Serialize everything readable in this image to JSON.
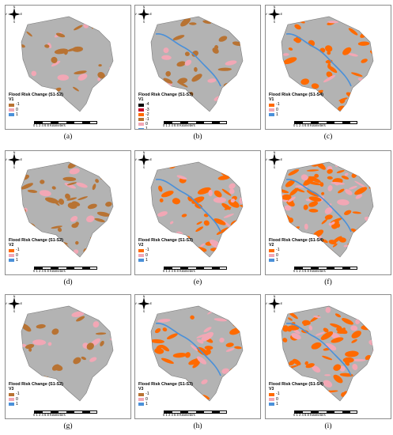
{
  "colors": {
    "minus1": "#b87333",
    "zero": "#f2a7b5",
    "plus1": "#4a90d9",
    "minus2": "#ff6a00",
    "minus3": "#c8102e",
    "minus4": "#000000",
    "base": "#b3b3b3"
  },
  "panels": [
    {
      "caption": "(a)",
      "legend_title": "Flood Risk Change (S1-S2)",
      "legend_sub": "V1",
      "items": [
        {
          "label": "-1",
          "color": "#b87333"
        },
        {
          "label": "0",
          "color": "#f2a7b5"
        },
        {
          "label": "1",
          "color": "#4a90d9"
        }
      ]
    },
    {
      "caption": "(b)",
      "legend_title": "Flood Risk Change (S1-S3)",
      "legend_sub": "V1",
      "items": [
        {
          "label": "-4",
          "color": "#000000"
        },
        {
          "label": "-3",
          "color": "#c8102e"
        },
        {
          "label": "-2",
          "color": "#ff6a00"
        },
        {
          "label": "-1",
          "color": "#b87333"
        },
        {
          "label": "0",
          "color": "#f2a7b5"
        },
        {
          "label": "1",
          "color": "#4a90d9"
        }
      ]
    },
    {
      "caption": "(c)",
      "legend_title": "Flood Risk Change (S1-S4)",
      "legend_sub": "V1",
      "items": [
        {
          "label": "-1",
          "color": "#ff6a00"
        },
        {
          "label": "0",
          "color": "#f2a7b5"
        },
        {
          "label": "1",
          "color": "#4a90d9"
        }
      ]
    },
    {
      "caption": "(d)",
      "legend_title": "Flood Risk Change (S1-S2)",
      "legend_sub": "V2",
      "items": [
        {
          "label": "-1",
          "color": "#ff6a00"
        },
        {
          "label": "0",
          "color": "#f2a7b5"
        },
        {
          "label": "1",
          "color": "#4a90d9"
        }
      ]
    },
    {
      "caption": "(e)",
      "legend_title": "Flood Risk Change (S1-S3)",
      "legend_sub": "V2",
      "items": [
        {
          "label": "-1",
          "color": "#ff6a00"
        },
        {
          "label": "0",
          "color": "#f2a7b5"
        },
        {
          "label": "1",
          "color": "#4a90d9"
        }
      ]
    },
    {
      "caption": "(f)",
      "legend_title": "Flood Risk Change (S1-S4)",
      "legend_sub": "V2",
      "items": [
        {
          "label": "-1",
          "color": "#ff6a00"
        },
        {
          "label": "0",
          "color": "#f2a7b5"
        },
        {
          "label": "1",
          "color": "#4a90d9"
        }
      ]
    },
    {
      "caption": "(g)",
      "legend_title": "Flood Risk Change (S1-S2)",
      "legend_sub": "V3",
      "items": [
        {
          "label": "-1",
          "color": "#b87333"
        },
        {
          "label": "0",
          "color": "#f2a7b5"
        },
        {
          "label": "1",
          "color": "#4a90d9"
        }
      ]
    },
    {
      "caption": "(h)",
      "legend_title": "Flood Risk Change (S1-S3)",
      "legend_sub": "V3",
      "items": [
        {
          "label": "-1",
          "color": "#b87333"
        },
        {
          "label": "0",
          "color": "#f2a7b5"
        },
        {
          "label": "1",
          "color": "#4a90d9"
        }
      ]
    },
    {
      "caption": "(i)",
      "legend_title": "Flood Risk Change (S1-S4)",
      "legend_sub": "V3",
      "items": [
        {
          "label": "-1",
          "color": "#ff6a00"
        },
        {
          "label": "0",
          "color": "#f2a7b5"
        },
        {
          "label": "1",
          "color": "#4a90d9"
        }
      ]
    }
  ],
  "scale_ticks": [
    "0",
    "1",
    "2",
    "4",
    "6",
    "8"
  ],
  "scale_unit": "Kilometers",
  "north_labels": {
    "n": "N",
    "e": "E",
    "s": "S",
    "w": "W"
  }
}
